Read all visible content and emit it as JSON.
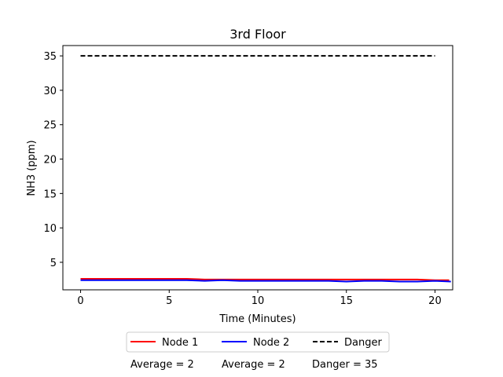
{
  "chart_data": {
    "type": "line",
    "title": "3rd Floor",
    "xlabel": "Time (Minutes)",
    "ylabel": "NH3 (ppm)",
    "xlim": [
      -1,
      21
    ],
    "ylim": [
      1,
      36.5
    ],
    "xticks": [
      0,
      5,
      10,
      15,
      20
    ],
    "yticks": [
      5,
      10,
      15,
      20,
      25,
      30,
      35
    ],
    "grid": false,
    "legend_placement": "bottom-center",
    "series": [
      {
        "name": "Node 1",
        "color": "#ff0000",
        "style": "solid",
        "x": [
          0,
          1,
          2,
          3,
          4,
          5,
          6,
          7,
          8,
          9,
          10,
          11,
          12,
          13,
          14,
          15,
          16,
          17,
          18,
          19,
          20,
          20.8
        ],
        "y": [
          2.6,
          2.6,
          2.6,
          2.6,
          2.6,
          2.6,
          2.6,
          2.5,
          2.5,
          2.5,
          2.5,
          2.5,
          2.5,
          2.5,
          2.5,
          2.5,
          2.5,
          2.5,
          2.5,
          2.5,
          2.4,
          2.4
        ]
      },
      {
        "name": "Node 2",
        "color": "#0000ff",
        "style": "solid",
        "x": [
          0,
          1,
          2,
          3,
          4,
          5,
          6,
          7,
          8,
          9,
          10,
          11,
          12,
          13,
          14,
          15,
          16,
          17,
          18,
          19,
          20,
          20.9
        ],
        "y": [
          2.4,
          2.4,
          2.4,
          2.4,
          2.4,
          2.4,
          2.4,
          2.3,
          2.4,
          2.3,
          2.3,
          2.3,
          2.3,
          2.3,
          2.3,
          2.2,
          2.3,
          2.3,
          2.2,
          2.2,
          2.3,
          2.2
        ]
      },
      {
        "name": "Danger",
        "color": "#000000",
        "style": "dashed",
        "x": [
          0,
          20
        ],
        "y": [
          35,
          35
        ]
      }
    ],
    "annotations": [
      "Average = 2",
      "Average = 2",
      "Danger = 35"
    ]
  }
}
